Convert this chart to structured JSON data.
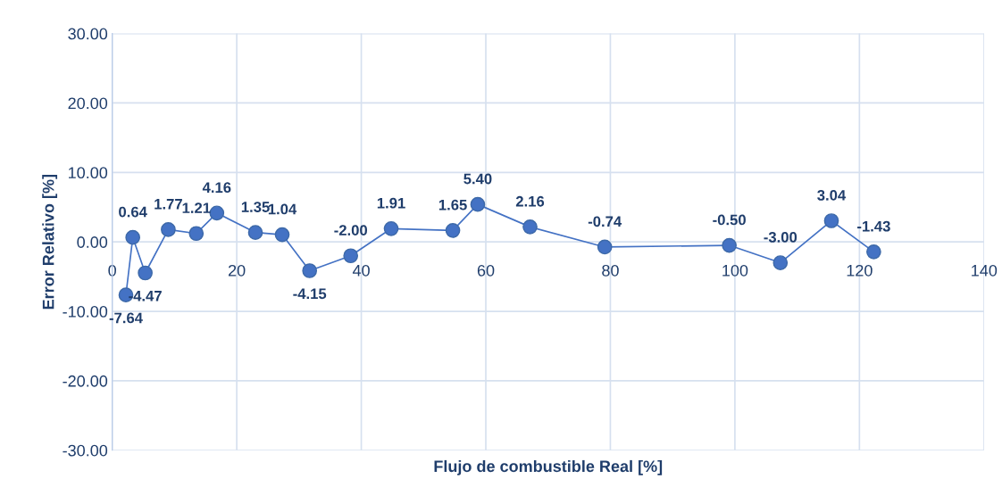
{
  "chart_data": {
    "type": "line",
    "xlabel": "Flujo de combustible Real [%]",
    "ylabel": "Error Relativo [%]",
    "x": [
      2.2,
      3.3,
      5.3,
      9.0,
      13.5,
      16.8,
      23.0,
      27.3,
      31.7,
      38.3,
      44.8,
      54.7,
      58.7,
      67.1,
      79.1,
      99.1,
      107.3,
      115.5,
      122.3
    ],
    "series": [
      {
        "color": "#4472c4",
        "values": [
          -7.64,
          0.64,
          -4.47,
          1.77,
          1.21,
          4.16,
          1.35,
          1.04,
          -4.15,
          -2.0,
          1.91,
          1.65,
          5.4,
          2.16,
          -0.74,
          -0.5,
          -3.0,
          3.04,
          -1.43
        ],
        "value_labels": [
          "-7.64",
          "0.64",
          "-4.47",
          "1.77",
          "1.21",
          "4.16",
          "1.35",
          "1.04",
          "-4.15",
          "-2.00",
          "1.91",
          "1.65",
          "5.40",
          "2.16",
          "-0.74",
          "-0.50",
          "-3.00",
          "3.04",
          "-1.43"
        ]
      }
    ],
    "marker": "circle",
    "line_style": "solid",
    "xlim": [
      0,
      140
    ],
    "xticks": [
      0,
      20,
      40,
      60,
      80,
      100,
      120,
      140
    ],
    "ylim": [
      -30,
      30
    ],
    "yticks": [
      {
        "value": -30,
        "label": "-30.00"
      },
      {
        "value": -20,
        "label": "-20.00"
      },
      {
        "value": -10,
        "label": "-10.00"
      },
      {
        "value": 0,
        "label": "0.00"
      },
      {
        "value": 10,
        "label": "10.00"
      },
      {
        "value": 20,
        "label": "20.00"
      },
      {
        "value": 30,
        "label": "30.00"
      }
    ],
    "grid": true
  }
}
